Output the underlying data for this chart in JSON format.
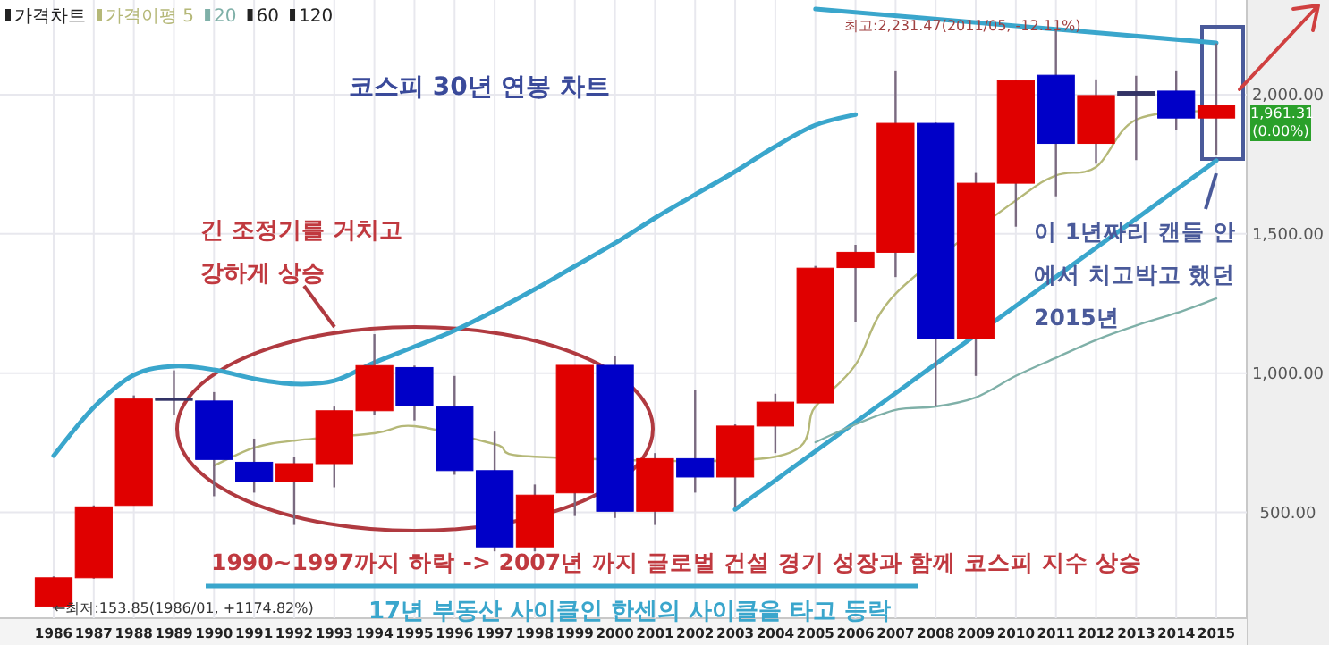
{
  "chart_data": {
    "type": "candlestick",
    "title": "코스피 30년 연봉 차트",
    "categories": [
      "1986",
      "1987",
      "1988",
      "1989",
      "1990",
      "1991",
      "1992",
      "1993",
      "1994",
      "1995",
      "1996",
      "1997",
      "1998",
      "1999",
      "2000",
      "2001",
      "2002",
      "2003",
      "2004",
      "2005",
      "2006",
      "2007",
      "2008",
      "2009",
      "2010",
      "2011",
      "2012",
      "2013",
      "2014",
      "2015"
    ],
    "ohlc": [
      [
        163,
        270,
        154,
        265
      ],
      [
        265,
        525,
        262,
        520
      ],
      [
        525,
        920,
        525,
        907
      ],
      [
        910,
        1010,
        850,
        909
      ],
      [
        900,
        932,
        558,
        690
      ],
      [
        680,
        765,
        571,
        610
      ],
      [
        610,
        700,
        455,
        675
      ],
      [
        675,
        880,
        590,
        865
      ],
      [
        865,
        1140,
        850,
        1027
      ],
      [
        1020,
        1027,
        830,
        882
      ],
      [
        880,
        990,
        635,
        650
      ],
      [
        650,
        790,
        360,
        376
      ],
      [
        376,
        600,
        360,
        562
      ],
      [
        570,
        1028,
        487,
        1028
      ],
      [
        1028,
        1060,
        480,
        504
      ],
      [
        504,
        713,
        455,
        693
      ],
      [
        693,
        939,
        571,
        627
      ],
      [
        627,
        816,
        519,
        810
      ],
      [
        810,
        926,
        713,
        896
      ],
      [
        893,
        1385,
        893,
        1377
      ],
      [
        1379,
        1461,
        1184,
        1434
      ],
      [
        1434,
        2087,
        1345,
        1897
      ],
      [
        1897,
        1900,
        880,
        1124
      ],
      [
        1124,
        1719,
        990,
        1682
      ],
      [
        1682,
        2051,
        1526,
        2051
      ],
      [
        2070,
        2231.47,
        1635,
        1825
      ],
      [
        1825,
        2055,
        1752,
        1997
      ],
      [
        1997,
        2068,
        1765,
        2011
      ],
      [
        2013,
        2087,
        1874,
        1916
      ],
      [
        1916,
        2184,
        1784,
        1961.31
      ]
    ],
    "colors": [
      "#e00000",
      "#e00000",
      "#e00000",
      "#333366",
      "#0000c8",
      "#0000c8",
      "#e00000",
      "#e00000",
      "#e00000",
      "#0000c8",
      "#0000c8",
      "#0000c8",
      "#e00000",
      "#e00000",
      "#0000c8",
      "#e00000",
      "#0000c8",
      "#e00000",
      "#e00000",
      "#e00000",
      "#e00000",
      "#e00000",
      "#0000c8",
      "#e00000",
      "#e00000",
      "#0000c8",
      "#e00000",
      "#333366",
      "#0000c8",
      "#e00000"
    ],
    "series": [
      {
        "name": "가격이평 5",
        "type": "line",
        "color": "#b5b878",
        "values": [
          null,
          null,
          null,
          null,
          668,
          732,
          758,
          null,
          784,
          810,
          null,
          745,
          700,
          null,
          null,
          null,
          null,
          null,
          700,
          880,
          1030,
          1285,
          null,
          null,
          1620,
          1710,
          1740,
          1910,
          null,
          1944
        ]
      },
      {
        "type": "line",
        "color": "#3aa6cc",
        "values": [
          704,
          877,
          993,
          1025,
          1012,
          980,
          961,
          973,
          1038,
          1095,
          1153,
          1224,
          1301,
          1384,
          1467,
          1557,
          1641,
          1724,
          1814,
          1891,
          1929,
          null,
          null,
          null,
          null,
          null,
          null,
          null,
          null,
          null
        ]
      },
      {
        "type": "line",
        "color": "#3aa6cc",
        "values": [
          null,
          null,
          null,
          null,
          null,
          null,
          null,
          null,
          null,
          null,
          null,
          null,
          null,
          null,
          null,
          null,
          null,
          511,
          null,
          null,
          null,
          null,
          null,
          null,
          null,
          null,
          null,
          null,
          null,
          1763
        ]
      },
      {
        "type": "line",
        "color": "#3aa6cc",
        "values": [
          null,
          null,
          null,
          null,
          null,
          null,
          null,
          null,
          null,
          null,
          null,
          null,
          null,
          null,
          null,
          null,
          null,
          null,
          null,
          2308,
          null,
          null,
          null,
          null,
          null,
          null,
          null,
          null,
          null,
          2186
        ]
      },
      {
        "name": "20",
        "type": "line",
        "color": "#7fb0a8",
        "values": [
          null,
          null,
          null,
          null,
          null,
          null,
          null,
          null,
          null,
          null,
          null,
          null,
          null,
          null,
          null,
          null,
          null,
          null,
          null,
          752,
          816,
          868,
          880,
          913,
          990,
          1055,
          1119,
          1171,
          1216,
          1268
        ]
      }
    ],
    "ylim": [
      120,
      2340
    ],
    "yticks": [
      {
        "value": 500,
        "label": "500.00"
      },
      {
        "value": 1000,
        "label": "1,000.00"
      },
      {
        "value": 1500,
        "label": "1,500.00"
      },
      {
        "value": 2000,
        "label": "2,000.00"
      }
    ],
    "grid": true,
    "legend": "top left",
    "annotations": [
      "가격차트",
      "60",
      "120",
      "긴 조정기를 거치고 강하게 상승",
      "이 1년짜리 캔들 안에서 치고박고 했던 2015년",
      "1990~1997까지 하락 -> 2007년 까지 글로벌 건설 경기 성장과 함께 코스피 지수 상승",
      "17년 부동산 사이클인 한센의 사이클을 타고 등락",
      "최고:2,231.47(2011/05, -12.11%)",
      "←최저:153.85(1986/01, +1174.82%)",
      "1,961.31 (0.00%)"
    ]
  }
}
